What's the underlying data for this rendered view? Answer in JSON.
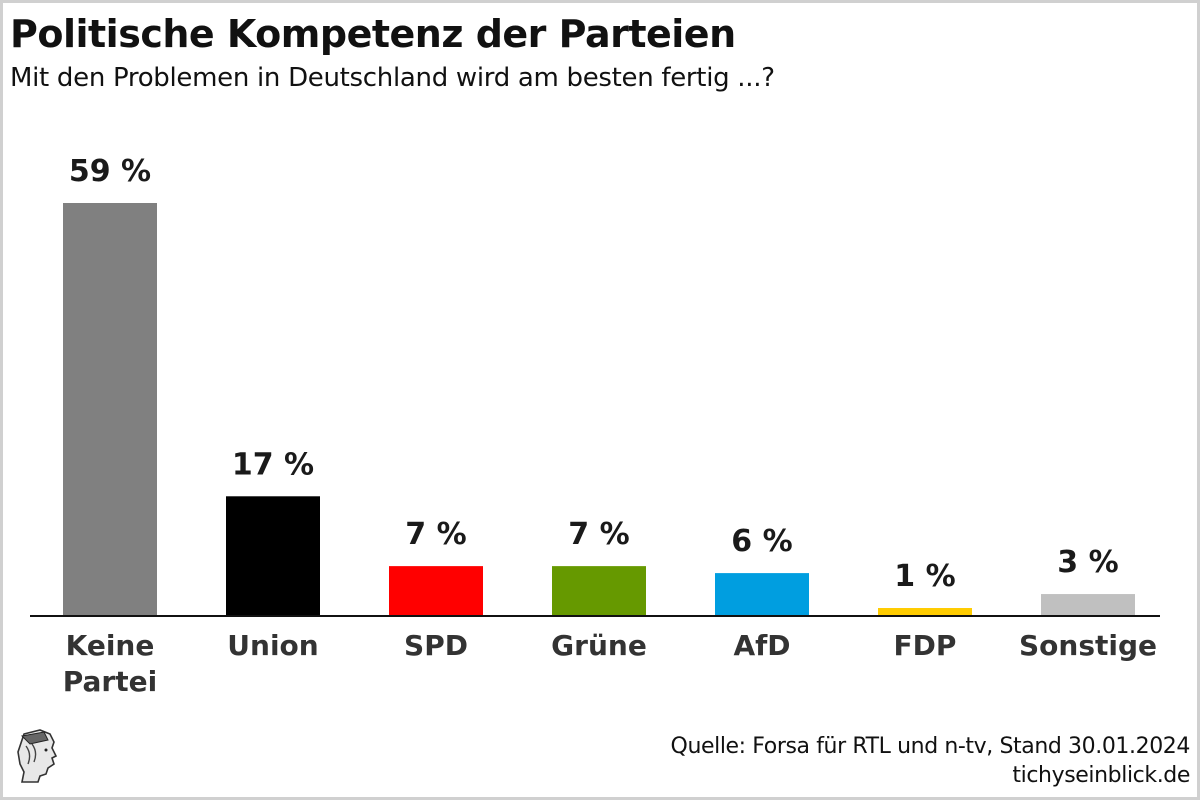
{
  "header": {
    "title": "Politische Kompetenz der Parteien",
    "subtitle": "Mit den Problemen in Deutschland wird am besten fertig ...?"
  },
  "footer": {
    "source": "Quelle: Forsa für RTL und n-tv, Stand 30.01.2024",
    "site": "tichyseinblick.de",
    "logo_icon": "classical-head-logo-icon"
  },
  "chart_data": {
    "type": "bar",
    "title": "Politische Kompetenz der Parteien",
    "subtitle": "Mit den Problemen in Deutschland wird am besten fertig ...?",
    "xlabel": "",
    "ylabel": "",
    "ylim": [
      0,
      59
    ],
    "grid": false,
    "legend": "none",
    "categories": [
      [
        "Keine",
        "Partei"
      ],
      [
        "Union"
      ],
      [
        "SPD"
      ],
      [
        "Grüne"
      ],
      [
        "AfD"
      ],
      [
        "FDP"
      ],
      [
        "Sonstige"
      ]
    ],
    "values": [
      59,
      17,
      7,
      7,
      6,
      1,
      3
    ],
    "value_labels": [
      "59 %",
      "17 %",
      "7 %",
      "7 %",
      "6 %",
      "1 %",
      "3 %"
    ],
    "colors": [
      "#808080",
      "#000000",
      "#ff0000",
      "#669900",
      "#009ee0",
      "#ffcc00",
      "#c0c0c0"
    ]
  }
}
